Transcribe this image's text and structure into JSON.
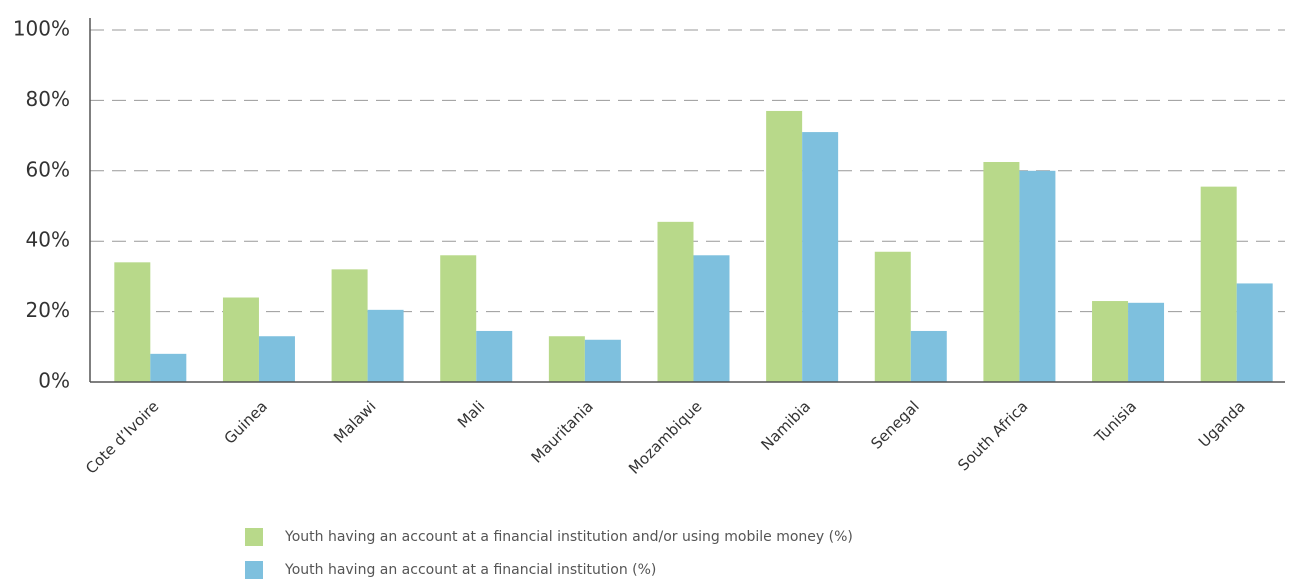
{
  "chart_data": {
    "type": "bar",
    "categories": [
      "Cote d’Ivoire",
      "Guinea",
      "Malawi",
      "Mali",
      "Mauritania",
      "Mozambique",
      "Namibia",
      "Senegal",
      "South Africa",
      "Tunisia",
      "Uganda"
    ],
    "series": [
      {
        "name": "Youth having an account at a financial institution and/or using mobile money (%)",
        "color": "#b8d98a",
        "values": [
          34,
          24,
          32,
          36,
          13,
          45.5,
          77,
          37,
          62.5,
          23,
          55.5
        ]
      },
      {
        "name": "Youth having an account at a financial institution (%)",
        "color": "#7ec0de",
        "values": [
          8,
          13,
          20.5,
          14.5,
          12,
          36,
          71,
          14.5,
          60,
          22.5,
          28
        ]
      }
    ],
    "ylim": [
      0,
      100
    ],
    "yticks": [
      {
        "value": 0,
        "label": "0%"
      },
      {
        "value": 20,
        "label": "20%"
      },
      {
        "value": 40,
        "label": "40%"
      },
      {
        "value": 60,
        "label": "60%"
      },
      {
        "value": 80,
        "label": "80%"
      },
      {
        "value": 100,
        "label": "100%"
      }
    ],
    "grid": true
  }
}
